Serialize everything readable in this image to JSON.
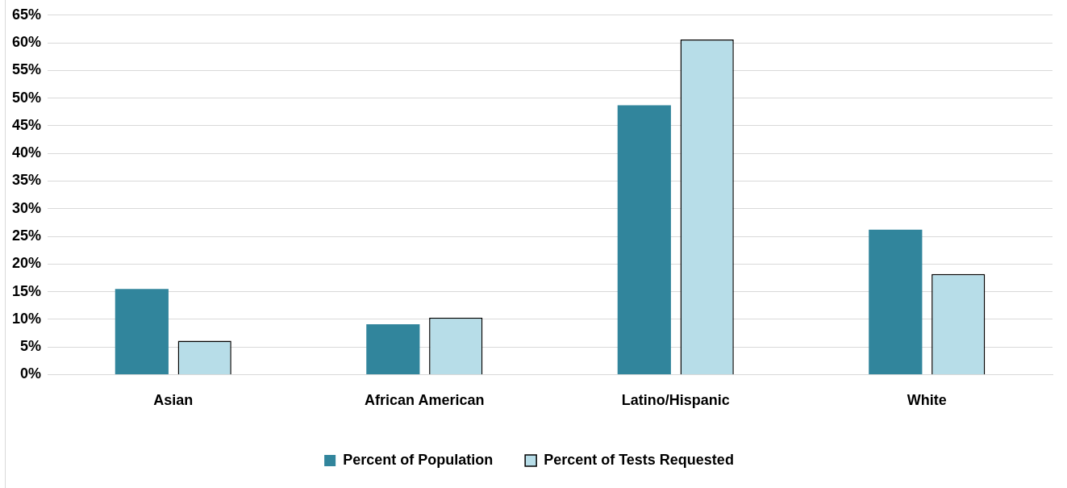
{
  "chart_data": {
    "type": "bar",
    "categories": [
      "Asian",
      "African American",
      "Latino/Hispanic",
      "White"
    ],
    "series": [
      {
        "name": "Percent of Population",
        "color": "#31859c",
        "values": [
          15.5,
          9.1,
          48.7,
          26.2
        ]
      },
      {
        "name": "Percent of Tests Requested",
        "color": "#b7dde8",
        "values": [
          6.1,
          10.3,
          60.6,
          18.2
        ]
      }
    ],
    "ylim": [
      0,
      65
    ],
    "yticks": [
      {
        "value": 0,
        "label": "0%"
      },
      {
        "value": 5,
        "label": "5%"
      },
      {
        "value": 10,
        "label": "10%"
      },
      {
        "value": 15,
        "label": "15%"
      },
      {
        "value": 20,
        "label": "20%"
      },
      {
        "value": 25,
        "label": "25%"
      },
      {
        "value": 30,
        "label": "30%"
      },
      {
        "value": 35,
        "label": "35%"
      },
      {
        "value": 40,
        "label": "40%"
      },
      {
        "value": 45,
        "label": "45%"
      },
      {
        "value": 50,
        "label": "50%"
      },
      {
        "value": 55,
        "label": "55%"
      },
      {
        "value": 60,
        "label": "60%"
      },
      {
        "value": 65,
        "label": "65%"
      }
    ],
    "grid": "y",
    "legend": "bottom"
  }
}
